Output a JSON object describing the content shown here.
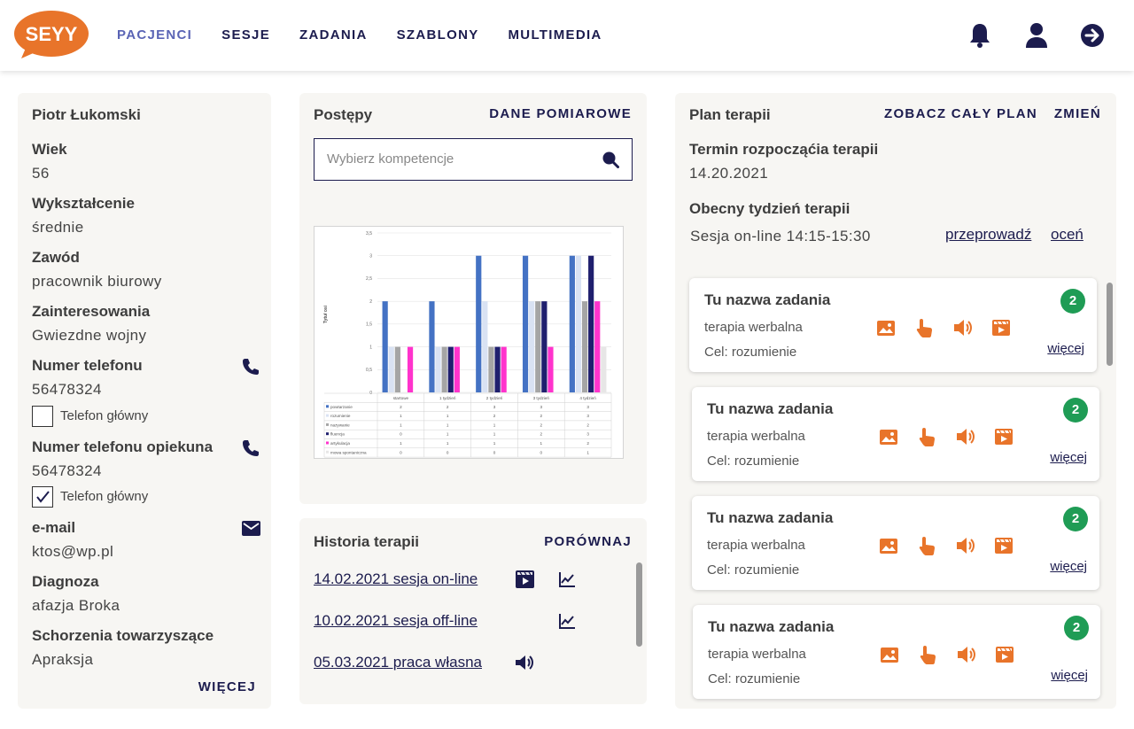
{
  "header": {
    "logo_text": "SEYY",
    "nav": [
      "PACJENCI",
      "SESJE",
      "ZADANIA",
      "SZABLONY",
      "MULTIMEDIA"
    ],
    "active_nav": "PACJENCI",
    "icons": [
      "bell-icon",
      "user-icon",
      "logout-icon"
    ]
  },
  "colors": {
    "navy": "#1c1c4e",
    "active_nav": "#5a64b5",
    "orange": "#e8742a",
    "badge_green": "#1f9c55",
    "card_bg": "#f7f6f3"
  },
  "patient": {
    "name": "Piotr Łukomski",
    "age_label": "Wiek",
    "age": "56",
    "education_label": "Wykształcenie",
    "education": "średnie",
    "job_label": "Zawód",
    "job": "pracownik biurowy",
    "interests_label": "Zainteresowania",
    "interests": "Gwiezdne wojny",
    "phone_label": "Numer telefonu",
    "phone": "56478324",
    "phone_main_label": "Telefon główny",
    "phone_main_checked": false,
    "guardian_phone_label": "Numer telefonu opiekuna",
    "guardian_phone": "56478324",
    "guardian_main_label": "Telefon główny",
    "guardian_main_checked": true,
    "email_label": "e-mail",
    "email": "ktos@wp.pl",
    "diagnosis_label": "Diagnoza",
    "diagnosis": "afazja Broka",
    "comorbid_label": "Schorzenia towarzyszące",
    "comorbid": "Apraksja",
    "more": "WIĘCEJ"
  },
  "progress": {
    "title": "Postępy",
    "data_link": "DANE POMIAROWE",
    "search_placeholder": "Wybierz kompetencje"
  },
  "chart_data": {
    "type": "bar",
    "ylabel": "Tytuł osi",
    "ylim": [
      0,
      3.5
    ],
    "yticks": [
      "0",
      "0,5",
      "1",
      "1,5",
      "2",
      "2,5",
      "3",
      "3,5"
    ],
    "categories": [
      "startowe",
      "1 tydzień",
      "2 tydzień",
      "3 tydzień",
      "4 tydzień"
    ],
    "series": [
      {
        "name": "powtarzanie",
        "color": "#4472c4",
        "values": [
          2,
          2,
          3,
          3,
          3
        ]
      },
      {
        "name": "rozumienie",
        "color": "#d9e2f3",
        "values": [
          1,
          1,
          2,
          2,
          3
        ]
      },
      {
        "name": "nazywanie",
        "color": "#a5a5a5",
        "values": [
          1,
          1,
          1,
          2,
          2
        ]
      },
      {
        "name": "fluencja",
        "color": "#1f1f6e",
        "values": [
          0,
          1,
          1,
          2,
          3
        ]
      },
      {
        "name": "artykulacja",
        "color": "#ff33cc",
        "values": [
          1,
          1,
          1,
          1,
          2
        ]
      },
      {
        "name": "mowa spontaniczna",
        "color": "#e7e6e6",
        "values": [
          0,
          0,
          0,
          0,
          1
        ]
      }
    ]
  },
  "history": {
    "title": "Historia terapii",
    "compare": "PORÓWNAJ",
    "items": [
      {
        "label": "14.02.2021 sesja on-line",
        "icons": [
          "video-icon",
          "chart-icon"
        ]
      },
      {
        "label": "10.02.2021 sesja off-line",
        "icons": [
          "chart-icon"
        ]
      },
      {
        "label": "05.03.2021 praca własna",
        "icons": [
          "audio-icon"
        ]
      }
    ]
  },
  "plan": {
    "title": "Plan terapii",
    "see_all": "ZOBACZ CAŁY PLAN",
    "change": "ZMIEŃ",
    "start_label": "Termin rozpocząćia terapii",
    "start_date": "14.20.2021",
    "week_label": "Obecny tydzień terapii",
    "session": "Sesja on-line 14:15-15:30",
    "conduct": "przeprowadź",
    "rate": "oceń",
    "tasks": [
      {
        "name": "Tu nazwa zadania",
        "type": "terapia werbalna",
        "goal": "Cel: rozumienie",
        "count": "2",
        "more": "więcej"
      },
      {
        "name": "Tu nazwa zadania",
        "type": "terapia werbalna",
        "goal": "Cel: rozumienie",
        "count": "2",
        "more": "więcej"
      },
      {
        "name": "Tu nazwa zadania",
        "type": "terapia werbalna",
        "goal": "Cel: rozumienie",
        "count": "2",
        "more": "więcej"
      },
      {
        "name": "Tu nazwa zadania",
        "type": "terapia werbalna",
        "goal": "Cel: rozumienie",
        "count": "2",
        "more": "więcej"
      }
    ]
  }
}
